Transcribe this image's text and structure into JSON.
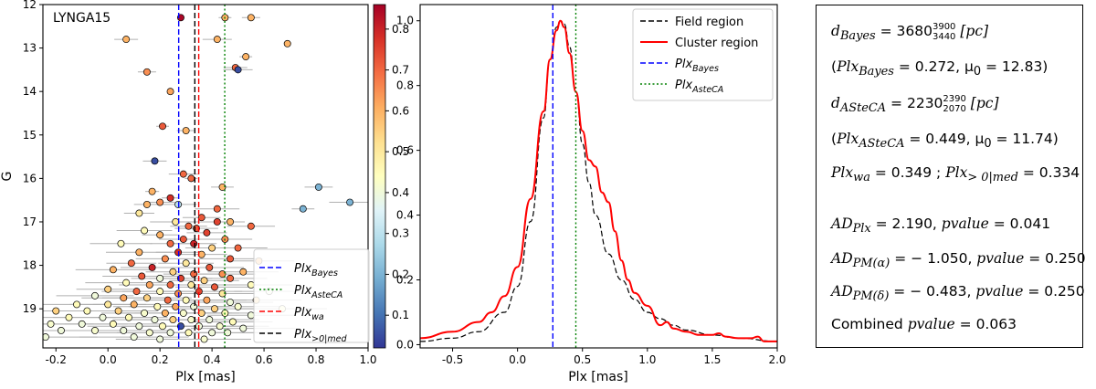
{
  "chart_data": [
    {
      "type": "scatter",
      "panel": "left",
      "annotation": "LYNGA15",
      "xlabel": "Plx [mas]",
      "ylabel": "G",
      "xlim": [
        -0.25,
        1.0
      ],
      "ylim": [
        19.9,
        12.0
      ],
      "xticks": [
        -0.2,
        0.0,
        0.2,
        0.4,
        0.6,
        0.8,
        1.0
      ],
      "yticks": [
        12,
        13,
        14,
        15,
        16,
        17,
        18,
        19
      ],
      "colorbar": {
        "range": [
          0.02,
          0.86
        ],
        "ticks": [
          0.1,
          0.2,
          0.3,
          0.4,
          0.5,
          0.6,
          0.7,
          0.8
        ],
        "colormap": [
          "#313695",
          "#4575b4",
          "#74add1",
          "#abd9e9",
          "#e0f3f8",
          "#ffffbf",
          "#fee090",
          "#fdae61",
          "#f46d43",
          "#d73027",
          "#a50026"
        ]
      },
      "vlines": [
        {
          "name": "Plx_Bayes",
          "x": 0.272,
          "color": "#0000ff",
          "style": "dashed"
        },
        {
          "name": "Plx_AsteCA",
          "x": 0.449,
          "color": "#008000",
          "style": "dotted"
        },
        {
          "name": "Plx_wa",
          "x": 0.349,
          "color": "#ff0000",
          "style": "dashed"
        },
        {
          "name": "Plx_>0|med",
          "x": 0.334,
          "color": "#000000",
          "style": "dashed"
        }
      ],
      "legend": {
        "placement": "lower-right",
        "entries": [
          {
            "base": "Plx",
            "sub": "Bayes",
            "color": "#0000ff",
            "style": "dashed"
          },
          {
            "base": "Plx",
            "sub": "AsteCA",
            "color": "#008000",
            "style": "dotted"
          },
          {
            "base": "Plx",
            "sub": "wa",
            "color": "#ff0000",
            "style": "dashed"
          },
          {
            "base": "Plx",
            "sub": ">0|med",
            "color": "#000000",
            "style": "dashed"
          }
        ]
      },
      "points": [
        {
          "x": 0.28,
          "y": 12.3,
          "c": 0.85
        },
        {
          "x": 0.45,
          "y": 12.3,
          "c": 0.6
        },
        {
          "x": 0.55,
          "y": 12.3,
          "c": 0.6
        },
        {
          "x": 0.07,
          "y": 12.8,
          "c": 0.6
        },
        {
          "x": 0.42,
          "y": 12.8,
          "c": 0.6
        },
        {
          "x": 0.69,
          "y": 12.9,
          "c": 0.6
        },
        {
          "x": 0.53,
          "y": 13.2,
          "c": 0.6
        },
        {
          "x": 0.15,
          "y": 13.55,
          "c": 0.65
        },
        {
          "x": 0.49,
          "y": 13.45,
          "c": 0.7
        },
        {
          "x": 0.5,
          "y": 13.5,
          "c": 0.05
        },
        {
          "x": 0.24,
          "y": 14.0,
          "c": 0.62
        },
        {
          "x": 0.21,
          "y": 14.8,
          "c": 0.72
        },
        {
          "x": 0.3,
          "y": 14.9,
          "c": 0.6
        },
        {
          "x": 0.18,
          "y": 15.6,
          "c": 0.05
        },
        {
          "x": 0.29,
          "y": 15.9,
          "c": 0.7
        },
        {
          "x": 0.17,
          "y": 16.3,
          "c": 0.6
        },
        {
          "x": 0.32,
          "y": 16.0,
          "c": 0.7
        },
        {
          "x": 0.44,
          "y": 16.2,
          "c": 0.6
        },
        {
          "x": 0.81,
          "y": 16.2,
          "c": 0.2
        },
        {
          "x": 0.93,
          "y": 16.55,
          "c": 0.2
        },
        {
          "x": 0.24,
          "y": 16.45,
          "c": 0.78
        },
        {
          "x": 0.15,
          "y": 16.6,
          "c": 0.6
        },
        {
          "x": 0.2,
          "y": 16.55,
          "c": 0.65
        },
        {
          "x": 0.27,
          "y": 16.6,
          "c": 0.3
        },
        {
          "x": 0.42,
          "y": 16.7,
          "c": 0.7
        },
        {
          "x": 0.75,
          "y": 16.7,
          "c": 0.2
        },
        {
          "x": 0.12,
          "y": 16.8,
          "c": 0.5
        },
        {
          "x": 0.36,
          "y": 16.9,
          "c": 0.72
        },
        {
          "x": 0.42,
          "y": 17.0,
          "c": 0.75
        },
        {
          "x": 0.26,
          "y": 17.0,
          "c": 0.5
        },
        {
          "x": 0.47,
          "y": 17.0,
          "c": 0.6
        },
        {
          "x": 0.31,
          "y": 17.1,
          "c": 0.7
        },
        {
          "x": 0.34,
          "y": 17.15,
          "c": 0.72
        },
        {
          "x": 0.55,
          "y": 17.1,
          "c": 0.7
        },
        {
          "x": 0.14,
          "y": 17.2,
          "c": 0.45
        },
        {
          "x": 0.2,
          "y": 17.3,
          "c": 0.6
        },
        {
          "x": 0.38,
          "y": 17.25,
          "c": 0.75
        },
        {
          "x": 0.29,
          "y": 17.4,
          "c": 0.72
        },
        {
          "x": 0.45,
          "y": 17.4,
          "c": 0.65
        },
        {
          "x": 0.05,
          "y": 17.5,
          "c": 0.45
        },
        {
          "x": 0.24,
          "y": 17.5,
          "c": 0.7
        },
        {
          "x": 0.33,
          "y": 17.5,
          "c": 0.8
        },
        {
          "x": 0.4,
          "y": 17.6,
          "c": 0.55
        },
        {
          "x": 0.5,
          "y": 17.6,
          "c": 0.7
        },
        {
          "x": 0.12,
          "y": 17.7,
          "c": 0.6
        },
        {
          "x": 0.27,
          "y": 17.7,
          "c": 0.78
        },
        {
          "x": 0.36,
          "y": 17.75,
          "c": 0.6
        },
        {
          "x": 0.22,
          "y": 17.85,
          "c": 0.65
        },
        {
          "x": 0.47,
          "y": 17.85,
          "c": 0.72
        },
        {
          "x": 0.58,
          "y": 17.9,
          "c": 0.6
        },
        {
          "x": 0.09,
          "y": 17.95,
          "c": 0.7
        },
        {
          "x": 0.3,
          "y": 17.95,
          "c": 0.5
        },
        {
          "x": 0.17,
          "y": 18.05,
          "c": 0.8
        },
        {
          "x": 0.39,
          "y": 18.05,
          "c": 0.72
        },
        {
          "x": 0.02,
          "y": 18.1,
          "c": 0.6
        },
        {
          "x": 0.25,
          "y": 18.15,
          "c": 0.55
        },
        {
          "x": 0.33,
          "y": 18.2,
          "c": 0.7
        },
        {
          "x": 0.44,
          "y": 18.2,
          "c": 0.65
        },
        {
          "x": 0.52,
          "y": 18.15,
          "c": 0.6
        },
        {
          "x": 0.13,
          "y": 18.25,
          "c": 0.72
        },
        {
          "x": 0.2,
          "y": 18.3,
          "c": 0.4
        },
        {
          "x": 0.28,
          "y": 18.3,
          "c": 0.75
        },
        {
          "x": 0.37,
          "y": 18.35,
          "c": 0.55
        },
        {
          "x": 0.47,
          "y": 18.3,
          "c": 0.7
        },
        {
          "x": 0.07,
          "y": 18.4,
          "c": 0.45
        },
        {
          "x": 0.16,
          "y": 18.45,
          "c": 0.62
        },
        {
          "x": 0.24,
          "y": 18.45,
          "c": 0.7
        },
        {
          "x": 0.32,
          "y": 18.45,
          "c": 0.5
        },
        {
          "x": 0.41,
          "y": 18.5,
          "c": 0.72
        },
        {
          "x": 0.55,
          "y": 18.45,
          "c": 0.45
        },
        {
          "x": 0.0,
          "y": 18.55,
          "c": 0.55
        },
        {
          "x": 0.11,
          "y": 18.6,
          "c": 0.7
        },
        {
          "x": 0.2,
          "y": 18.6,
          "c": 0.45
        },
        {
          "x": 0.27,
          "y": 18.65,
          "c": 0.65
        },
        {
          "x": 0.35,
          "y": 18.6,
          "c": 0.75
        },
        {
          "x": 0.44,
          "y": 18.65,
          "c": 0.5
        },
        {
          "x": 0.62,
          "y": 18.6,
          "c": 0.4
        },
        {
          "x": -0.05,
          "y": 18.7,
          "c": 0.4
        },
        {
          "x": 0.06,
          "y": 18.75,
          "c": 0.62
        },
        {
          "x": 0.15,
          "y": 18.75,
          "c": 0.55
        },
        {
          "x": 0.23,
          "y": 18.8,
          "c": 0.7
        },
        {
          "x": 0.3,
          "y": 18.8,
          "c": 0.45
        },
        {
          "x": 0.38,
          "y": 18.8,
          "c": 0.62
        },
        {
          "x": 0.47,
          "y": 18.85,
          "c": 0.4
        },
        {
          "x": 0.57,
          "y": 18.8,
          "c": 0.55
        },
        {
          "x": -0.12,
          "y": 18.9,
          "c": 0.45
        },
        {
          "x": 0.0,
          "y": 18.9,
          "c": 0.5
        },
        {
          "x": 0.1,
          "y": 18.9,
          "c": 0.6
        },
        {
          "x": 0.19,
          "y": 18.95,
          "c": 0.45
        },
        {
          "x": 0.26,
          "y": 18.95,
          "c": 0.62
        },
        {
          "x": 0.33,
          "y": 18.95,
          "c": 0.4
        },
        {
          "x": 0.41,
          "y": 19.0,
          "c": 0.55
        },
        {
          "x": 0.5,
          "y": 18.95,
          "c": 0.42
        },
        {
          "x": 0.67,
          "y": 19.0,
          "c": 0.45
        },
        {
          "x": -0.2,
          "y": 19.05,
          "c": 0.55
        },
        {
          "x": -0.08,
          "y": 19.05,
          "c": 0.45
        },
        {
          "x": 0.04,
          "y": 19.05,
          "c": 0.55
        },
        {
          "x": 0.14,
          "y": 19.1,
          "c": 0.42
        },
        {
          "x": 0.22,
          "y": 19.1,
          "c": 0.6
        },
        {
          "x": 0.29,
          "y": 19.1,
          "c": 0.42
        },
        {
          "x": 0.36,
          "y": 19.1,
          "c": 0.55
        },
        {
          "x": 0.45,
          "y": 19.1,
          "c": 0.45
        },
        {
          "x": 0.55,
          "y": 19.15,
          "c": 0.4
        },
        {
          "x": -0.15,
          "y": 19.2,
          "c": 0.45
        },
        {
          "x": -0.02,
          "y": 19.2,
          "c": 0.4
        },
        {
          "x": 0.08,
          "y": 19.2,
          "c": 0.45
        },
        {
          "x": 0.18,
          "y": 19.25,
          "c": 0.4
        },
        {
          "x": 0.25,
          "y": 19.25,
          "c": 0.55
        },
        {
          "x": 0.32,
          "y": 19.25,
          "c": 0.42
        },
        {
          "x": 0.39,
          "y": 19.25,
          "c": 0.4
        },
        {
          "x": 0.48,
          "y": 19.3,
          "c": 0.45
        },
        {
          "x": -0.22,
          "y": 19.35,
          "c": 0.42
        },
        {
          "x": -0.1,
          "y": 19.35,
          "c": 0.4
        },
        {
          "x": 0.02,
          "y": 19.35,
          "c": 0.45
        },
        {
          "x": 0.12,
          "y": 19.4,
          "c": 0.4
        },
        {
          "x": 0.21,
          "y": 19.4,
          "c": 0.45
        },
        {
          "x": 0.28,
          "y": 19.4,
          "c": 0.05
        },
        {
          "x": 0.35,
          "y": 19.4,
          "c": 0.4
        },
        {
          "x": 0.43,
          "y": 19.4,
          "c": 0.42
        },
        {
          "x": 0.52,
          "y": 19.45,
          "c": 0.4
        },
        {
          "x": -0.18,
          "y": 19.5,
          "c": 0.4
        },
        {
          "x": -0.05,
          "y": 19.5,
          "c": 0.42
        },
        {
          "x": 0.06,
          "y": 19.5,
          "c": 0.4
        },
        {
          "x": 0.16,
          "y": 19.55,
          "c": 0.42
        },
        {
          "x": 0.24,
          "y": 19.55,
          "c": 0.4
        },
        {
          "x": 0.31,
          "y": 19.55,
          "c": 0.45
        },
        {
          "x": 0.4,
          "y": 19.55,
          "c": 0.4
        },
        {
          "x": 0.46,
          "y": 19.55,
          "c": 0.4
        },
        {
          "x": -0.24,
          "y": 19.65,
          "c": 0.4
        },
        {
          "x": 0.1,
          "y": 19.65,
          "c": 0.4
        },
        {
          "x": 0.2,
          "y": 19.7,
          "c": 0.4
        },
        {
          "x": 0.37,
          "y": 19.7,
          "c": 0.42
        }
      ]
    },
    {
      "type": "line",
      "panel": "middle",
      "xlabel": "Plx [mas]",
      "ylabel": "",
      "xlim": [
        -0.75,
        2.0
      ],
      "ylim": [
        -0.01,
        1.05
      ],
      "xticks": [
        -0.5,
        0.0,
        0.5,
        1.0,
        1.5,
        2.0
      ],
      "yticks": [
        0.0,
        0.2,
        0.4,
        0.6,
        0.8,
        1.0
      ],
      "series": [
        {
          "name": "Field region",
          "color": "#000000",
          "style": "dashed",
          "x": [
            -0.75,
            -0.5,
            -0.3,
            -0.1,
            0.0,
            0.1,
            0.2,
            0.25,
            0.3,
            0.33,
            0.36,
            0.4,
            0.45,
            0.5,
            0.55,
            0.6,
            0.7,
            0.8,
            0.9,
            1.0,
            1.1,
            1.2,
            1.3,
            1.5,
            1.7,
            2.0
          ],
          "y": [
            0.01,
            0.02,
            0.04,
            0.1,
            0.18,
            0.38,
            0.7,
            0.88,
            0.98,
            1.0,
            0.99,
            0.92,
            0.78,
            0.62,
            0.5,
            0.4,
            0.28,
            0.2,
            0.14,
            0.1,
            0.08,
            0.06,
            0.045,
            0.03,
            0.02,
            0.01
          ]
        },
        {
          "name": "Cluster region",
          "color": "#ff0000",
          "style": "solid",
          "x": [
            -0.75,
            -0.5,
            -0.3,
            -0.2,
            -0.1,
            0.0,
            0.1,
            0.2,
            0.25,
            0.3,
            0.33,
            0.36,
            0.4,
            0.45,
            0.5,
            0.55,
            0.6,
            0.65,
            0.7,
            0.75,
            0.8,
            0.85,
            0.9,
            1.0,
            1.1,
            1.15,
            1.2,
            1.3,
            1.4,
            1.5,
            1.55,
            1.6,
            1.7,
            1.8,
            1.85,
            1.9,
            2.0
          ],
          "y": [
            0.02,
            0.04,
            0.07,
            0.1,
            0.15,
            0.24,
            0.45,
            0.72,
            0.88,
            0.97,
            1.0,
            0.98,
            0.9,
            0.78,
            0.66,
            0.57,
            0.55,
            0.47,
            0.44,
            0.35,
            0.26,
            0.2,
            0.16,
            0.12,
            0.06,
            0.07,
            0.05,
            0.04,
            0.03,
            0.03,
            0.035,
            0.025,
            0.02,
            0.02,
            0.025,
            0.01,
            0.01
          ]
        }
      ],
      "vlines": [
        {
          "name": "Plx_Bayes",
          "x": 0.272,
          "color": "#0000ff",
          "style": "dashed"
        },
        {
          "name": "Plx_AsteCA",
          "x": 0.449,
          "color": "#008000",
          "style": "dotted"
        }
      ],
      "legend": {
        "placement": "top-right",
        "entries": [
          {
            "base": "Field region",
            "sub": "",
            "color": "#000000",
            "style": "dashed",
            "italic": false
          },
          {
            "base": "Cluster region",
            "sub": "",
            "color": "#ff0000",
            "style": "solid",
            "italic": false
          },
          {
            "base": "Plx",
            "sub": "Bayes",
            "color": "#0000ff",
            "style": "dashed",
            "italic": true
          },
          {
            "base": "Plx",
            "sub": "AsteCA",
            "color": "#008000",
            "style": "dotted",
            "italic": true
          }
        ]
      }
    }
  ],
  "info_box": {
    "d_bayes": {
      "label": "d",
      "sub": "Bayes",
      "eq": " = ",
      "value": "3680",
      "upper": "3900",
      "lower": "3440",
      "unit": " [pc]"
    },
    "bayes_params": {
      "text1": "(",
      "plx": "Plx",
      "sub": "Bayes",
      "rest": " = 0.272,  μ",
      "mu_sub": "0",
      "rest2": " = 12.83)"
    },
    "d_asteca": {
      "label": "d",
      "sub": "ASteCA",
      "eq": " = ",
      "value": "2230",
      "upper": "2390",
      "lower": "2070",
      "unit": " [pc]"
    },
    "asteca_params": {
      "text1": "(",
      "plx": "Plx",
      "sub": "ASteCA",
      "rest": " = 0.449,  μ",
      "mu_sub": "0",
      "rest2": " = 11.74)"
    },
    "plx_line": {
      "plx1": "Plx",
      "sub1": "wa",
      "val1": " = 0.349 ; ",
      "plx2": "Plx",
      "sub2": "> 0|med",
      "val2": " = 0.334"
    },
    "ad_plx": {
      "ad": "AD",
      "sub": "Plx",
      "val": " = 2.190,  ",
      "p": "pvalue",
      "pval": " = 0.041"
    },
    "ad_pm_a": {
      "ad": "AD",
      "sub": "PM(α)",
      "val": " = − 1.050,  ",
      "p": "pvalue",
      "pval": " = 0.250"
    },
    "ad_pm_d": {
      "ad": "AD",
      "sub": "PM(δ)",
      "val": " = − 0.483,  ",
      "p": "pvalue",
      "pval": " = 0.250"
    },
    "combined": {
      "label": "Combined ",
      "p": "pvalue",
      "pval": " = 0.063"
    }
  }
}
